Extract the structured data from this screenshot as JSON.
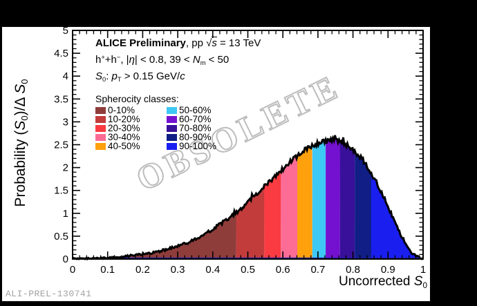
{
  "watermark": "OBSOLETE",
  "footer": "ALI-PREL-130741",
  "annotations": {
    "line1": [
      {
        "t": "ALICE Preliminary",
        "b": 1
      },
      {
        "t": ", pp "
      },
      {
        "t": "√"
      },
      {
        "t": "s",
        "i": 1,
        "ov": 1
      },
      {
        "t": " = 13 TeV"
      }
    ],
    "line2": [
      {
        "t": "h"
      },
      {
        "t": "+",
        "sup": 1
      },
      {
        "t": "+h"
      },
      {
        "t": "−",
        "sup": 1
      },
      {
        "t": ", |"
      },
      {
        "t": "η",
        "i": 1
      },
      {
        "t": "| < 0.8, 39 < "
      },
      {
        "t": "N",
        "i": 1
      },
      {
        "t": "m",
        "sub": 1
      },
      {
        "t": " < 50"
      }
    ],
    "line3": [
      {
        "t": "S",
        "i": 1
      },
      {
        "t": "0",
        "sub": 1
      },
      {
        "t": ": "
      },
      {
        "t": "p",
        "i": 1
      },
      {
        "t": "T",
        "sub": 1
      },
      {
        "t": " > 0.15 GeV/"
      },
      {
        "t": "c",
        "i": 1
      }
    ]
  },
  "legend": {
    "title": "Spherocity classes:"
  },
  "axes": {
    "x_title_segments": [
      {
        "t": "Uncorrected "
      },
      {
        "t": "S",
        "i": 1
      },
      {
        "t": "0",
        "sub": 1
      }
    ],
    "y_title_segments": [
      {
        "t": "Probability ("
      },
      {
        "t": "S",
        "i": 1
      },
      {
        "t": "0",
        "sub": 1
      },
      {
        "t": ")/Δ "
      },
      {
        "t": "S",
        "i": 1
      },
      {
        "t": "0",
        "sub": 1
      }
    ]
  },
  "chart_data": {
    "type": "area",
    "title": "",
    "xlabel": "Uncorrected S0",
    "ylabel": "Probability (S0)/Delta S0",
    "xlim": [
      0,
      1
    ],
    "ylim": [
      0,
      5
    ],
    "x_ticks": [
      "0",
      "0.1",
      "0.2",
      "0.3",
      "0.4",
      "0.5",
      "0.6",
      "0.7",
      "0.8",
      "0.9",
      "1"
    ],
    "y_ticks": [
      "0",
      "0.5",
      "1",
      "1.5",
      "2",
      "2.5",
      "3",
      "3.5",
      "4",
      "4.5",
      "5"
    ],
    "x_minor_step": 0.02,
    "y_minor_step": 0.1,
    "grid": false,
    "legend_position": "top-left-inside",
    "outline_color": "#000000",
    "baseline_color": "#1d1fae",
    "watermark_color": "#bdbdbd",
    "curve_points": [
      [
        0.0,
        0.004
      ],
      [
        0.04,
        0.01
      ],
      [
        0.08,
        0.02
      ],
      [
        0.12,
        0.04
      ],
      [
        0.16,
        0.07
      ],
      [
        0.2,
        0.105
      ],
      [
        0.24,
        0.155
      ],
      [
        0.28,
        0.235
      ],
      [
        0.32,
        0.33
      ],
      [
        0.36,
        0.47
      ],
      [
        0.4,
        0.65
      ],
      [
        0.44,
        0.86
      ],
      [
        0.48,
        1.1
      ],
      [
        0.52,
        1.38
      ],
      [
        0.56,
        1.68
      ],
      [
        0.6,
        1.97
      ],
      [
        0.64,
        2.25
      ],
      [
        0.68,
        2.47
      ],
      [
        0.71,
        2.56
      ],
      [
        0.74,
        2.6
      ],
      [
        0.77,
        2.55
      ],
      [
        0.8,
        2.4
      ],
      [
        0.83,
        2.15
      ],
      [
        0.86,
        1.78
      ],
      [
        0.88,
        1.48
      ],
      [
        0.9,
        1.15
      ],
      [
        0.92,
        0.8
      ],
      [
        0.94,
        0.47
      ],
      [
        0.96,
        0.2
      ],
      [
        0.975,
        0.08
      ],
      [
        0.99,
        0.025
      ],
      [
        1.0,
        0.01
      ]
    ],
    "classes": [
      {
        "label": "0-10%",
        "color": "#8f3d3b",
        "x_from": 0.0,
        "x_to": 0.467
      },
      {
        "label": "10-20%",
        "color": "#c23c3c",
        "x_from": 0.467,
        "x_to": 0.547
      },
      {
        "label": "20-30%",
        "color": "#fa3b42",
        "x_from": 0.547,
        "x_to": 0.594
      },
      {
        "label": "30-40%",
        "color": "#fc6c95",
        "x_from": 0.594,
        "x_to": 0.641
      },
      {
        "label": "40-50%",
        "color": "#ffa00d",
        "x_from": 0.641,
        "x_to": 0.684
      },
      {
        "label": "50-60%",
        "color": "#3ec8f4",
        "x_from": 0.684,
        "x_to": 0.722
      },
      {
        "label": "60-70%",
        "color": "#7411d0",
        "x_from": 0.722,
        "x_to": 0.763
      },
      {
        "label": "70-80%",
        "color": "#39109a",
        "x_from": 0.763,
        "x_to": 0.805
      },
      {
        "label": "80-90%",
        "color": "#101e86",
        "x_from": 0.805,
        "x_to": 0.852
      },
      {
        "label": "90-100%",
        "color": "#1a1ff0",
        "x_from": 0.852,
        "x_to": 1.0
      }
    ]
  }
}
